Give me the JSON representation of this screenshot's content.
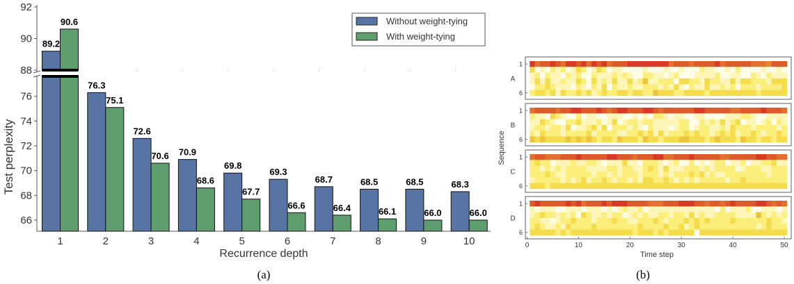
{
  "chart_data": [
    {
      "type": "bar",
      "panel_caption": "(a)",
      "xlabel": "Recurrence depth",
      "ylabel": "Test perplexity",
      "categories": [
        "1",
        "2",
        "3",
        "4",
        "5",
        "6",
        "7",
        "8",
        "9",
        "10"
      ],
      "series": [
        {
          "name": "Without weight-tying",
          "color": "#5874a4",
          "values": [
            89.2,
            76.3,
            72.6,
            70.9,
            69.8,
            69.3,
            68.7,
            68.5,
            68.5,
            68.3
          ]
        },
        {
          "name": "With weight-tying",
          "color": "#5e9e6e",
          "values": [
            90.6,
            75.1,
            70.6,
            68.6,
            67.7,
            66.6,
            66.4,
            66.1,
            66.0,
            66.0
          ]
        }
      ],
      "data_labels": {
        "Without weight-tying": [
          "89.2",
          "76.3",
          "72.6",
          "70.9",
          "69.8",
          "69.3",
          "68.7",
          "68.5",
          "68.5",
          "68.3"
        ],
        "With weight-tying": [
          "90.6",
          "75.1",
          "70.6",
          "68.6",
          "67.7",
          "66.6",
          "66.4",
          "66.1",
          "66.0",
          "66.0"
        ]
      },
      "broken_axis": true,
      "ylim_lower": [
        65.1,
        77.5
      ],
      "ylim_upper": [
        88,
        92
      ],
      "yticks_lower": [
        "66",
        "68",
        "70",
        "72",
        "74",
        "76"
      ],
      "yticks_upper": [
        "88",
        "90",
        "92"
      ],
      "legend": {
        "position": "top-right",
        "entries": [
          "Without weight-tying",
          "With weight-tying"
        ]
      },
      "grid": false
    },
    {
      "type": "heatmap",
      "panel_caption": "(b)",
      "xlabel": "Time step",
      "ylabel": "Sequence",
      "xticks": [
        "0",
        "10",
        "20",
        "30",
        "40",
        "50"
      ],
      "xlim": [
        0,
        51
      ],
      "yticks": [
        "1",
        "6"
      ],
      "colorscale": [
        "#fefde8",
        "#fdf6b8",
        "#fbee7a",
        "#f5dc4c",
        "#eec33e",
        "#e5892f",
        "#e2702f",
        "#dd5a2b",
        "#d93a26"
      ],
      "panels": [
        {
          "label": "A",
          "rows": [
            "86778768878687867778888888867776777786777776665777",
            "30102120132013201100001000100100021100102000010010",
            "12021102120021112121002211012000111120011002102111",
            "13131121132031213113124112220332213221131332221333",
            "02232111021021302112112221213102113112120222122223",
            "23323132232312322332332243332233332333333333233333"
          ]
        },
        {
          "label": "B",
          "rows": [
            "67777677887778767887778876777777887777766777787776",
            "21103210020110011100101022101100110000111221001111",
            "11321002231112013012212211111220021213123011012021",
            "12212213011231302221210211101220122112132221222212",
            "21322212222312222112232313122232322123231223212232",
            "43433334343432332433324332333443332343332433233233"
          ]
        },
        {
          "label": "C",
          "rows": [
            "67766677787777788777677788667778777776677777887766",
            "23220111211221011131102221012002010122011201122311",
            "22121212222111122122112321311122212122220122211222",
            "22232112222212212122212221212223231211222222221222",
            "12222212123122321221213322321212122222122322222222",
            "33323333333333333333333333333333333333333333333333"
          ]
        },
        {
          "label": "D",
          "rows": [
            "78777778786777878887777666777888776776787777887676",
            "10111001110111010121120111111111111102011120011101",
            "12322121203211212201212112212213121122221111421212",
            "22110122322212223221122232122232323222232222223221",
            "23211213222232222222232222322312322222222222123222",
            "33333232333333333333233323233333033333333333333333"
          ]
        }
      ]
    }
  ]
}
